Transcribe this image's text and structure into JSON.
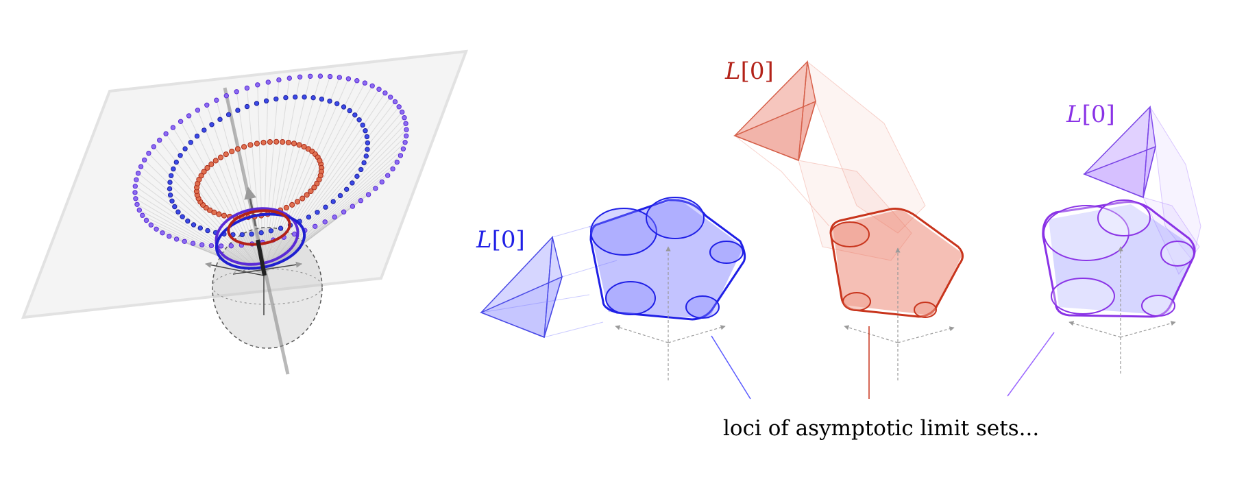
{
  "labels": {
    "blue": {
      "var": "L",
      "arg": "[0]"
    },
    "red": {
      "var": "L",
      "arg": "[0]"
    },
    "purple": {
      "var": "L",
      "arg": "[0]"
    }
  },
  "caption": "loci of asymptotic limit sets...",
  "colors": {
    "blue": "#1f1fe6",
    "blue_fill": "#6a6aff",
    "red": "#c8341c",
    "red_fill": "#e8705c",
    "purple": "#8a33e6",
    "purple_fill": "#9a66ff",
    "gray": "#8a8a8a",
    "plane": "#f2f2f2"
  }
}
